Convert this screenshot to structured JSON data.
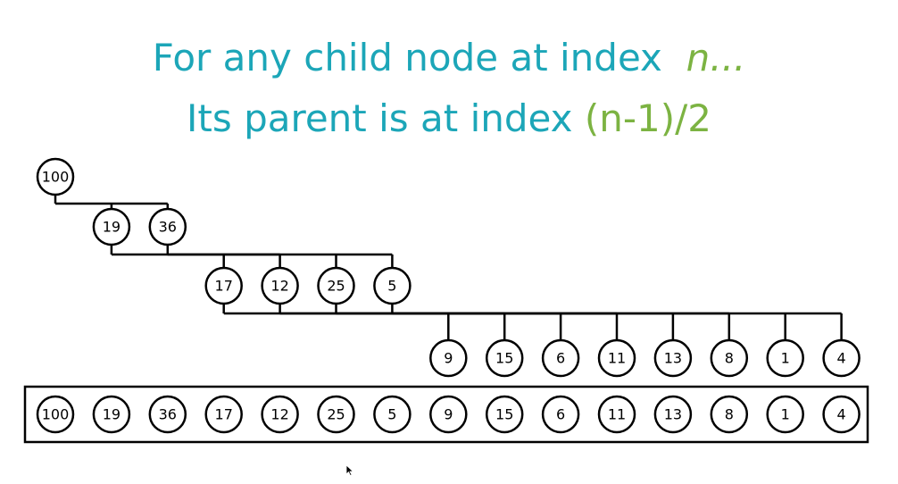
{
  "title": {
    "line1_text": "For any child node at index",
    "line1_var": "n...",
    "line2_text": "Its parent is at index",
    "line2_formula": "(n-1)/2"
  },
  "colors": {
    "title": "#1ca6b8",
    "accent": "#7cb342",
    "ink": "#000000"
  },
  "tree_levels": [
    [
      "100"
    ],
    [
      "19",
      "36"
    ],
    [
      "17",
      "12",
      "25",
      "5"
    ],
    [
      "9",
      "15",
      "6",
      "11",
      "13",
      "8",
      "1",
      "4"
    ]
  ],
  "array": [
    "100",
    "19",
    "36",
    "17",
    "12",
    "25",
    "5",
    "9",
    "15",
    "6",
    "11",
    "13",
    "8",
    "1",
    "4"
  ]
}
